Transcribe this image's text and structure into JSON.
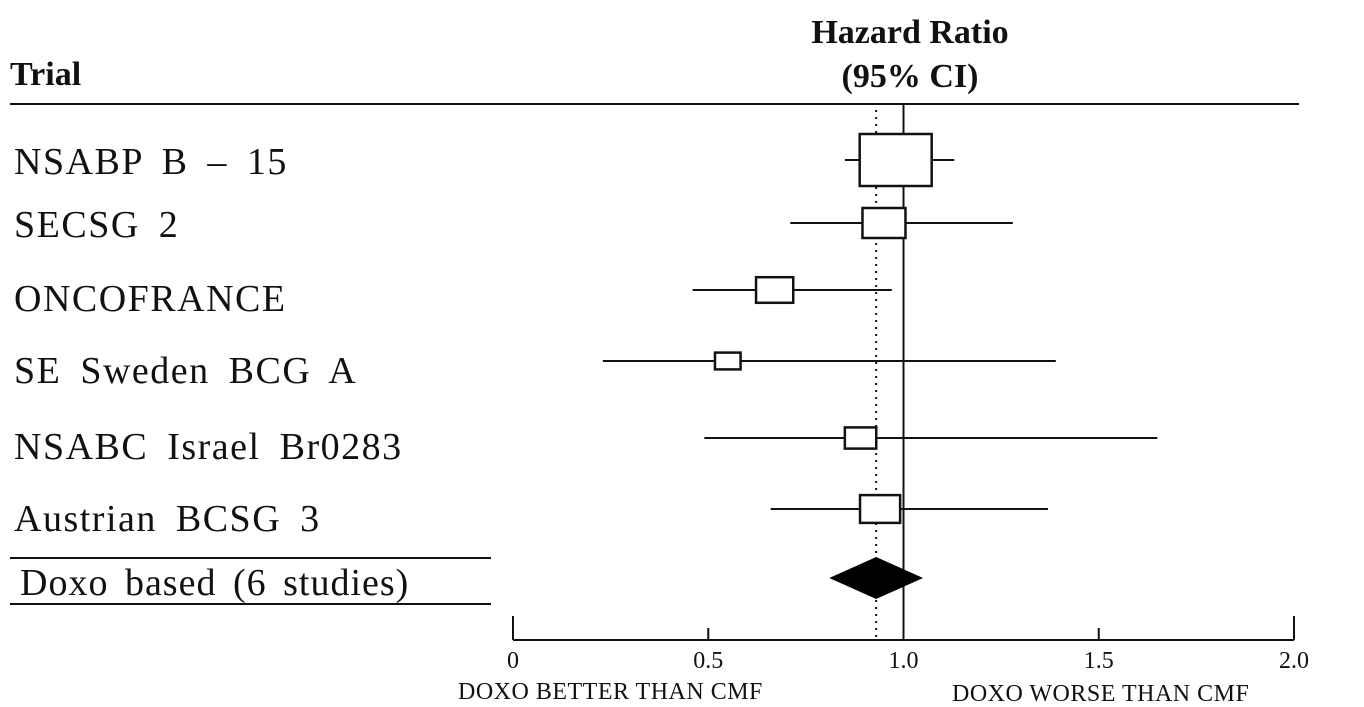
{
  "header": {
    "trial": "Trial",
    "hazard_ratio": "Hazard Ratio",
    "ci": "(95% CI)"
  },
  "footer": {
    "left_caption": "DOXO BETTER THAN CMF",
    "right_caption": "DOXO WORSE THAN CMF"
  },
  "chart_data": {
    "type": "forest",
    "xlim": [
      0,
      2.0
    ],
    "x_ticks": [
      "0",
      "0.5",
      "1.0",
      "1.5",
      "2.0"
    ],
    "x_tick_values": [
      0,
      0.5,
      1.0,
      1.5,
      2.0
    ],
    "reference_line": 1.0,
    "pooled_reference_line": 0.93,
    "studies": [
      {
        "name": "NSABP  B – 15",
        "hr": 0.98,
        "ci": [
          0.85,
          1.13
        ],
        "weight": 1.0
      },
      {
        "name": "SECSG  2",
        "hr": 0.95,
        "ci": [
          0.71,
          1.28
        ],
        "weight": 0.5
      },
      {
        "name": "ONCOFRANCE",
        "hr": 0.67,
        "ci": [
          0.46,
          0.97
        ],
        "weight": 0.4
      },
      {
        "name": "SE  Sweden  BCG  A",
        "hr": 0.55,
        "ci": [
          0.23,
          1.39
        ],
        "weight": 0.2
      },
      {
        "name": "NSABC  Israel  Br0283",
        "hr": 0.89,
        "ci": [
          0.49,
          1.65
        ],
        "weight": 0.3
      },
      {
        "name": "Austrian  BCSG  3",
        "hr": 0.94,
        "ci": [
          0.66,
          1.37
        ],
        "weight": 0.45
      }
    ],
    "pooled": {
      "name": "Doxo  based  (6 studies)",
      "hr": 0.93,
      "ci": [
        0.81,
        1.05
      ]
    }
  }
}
